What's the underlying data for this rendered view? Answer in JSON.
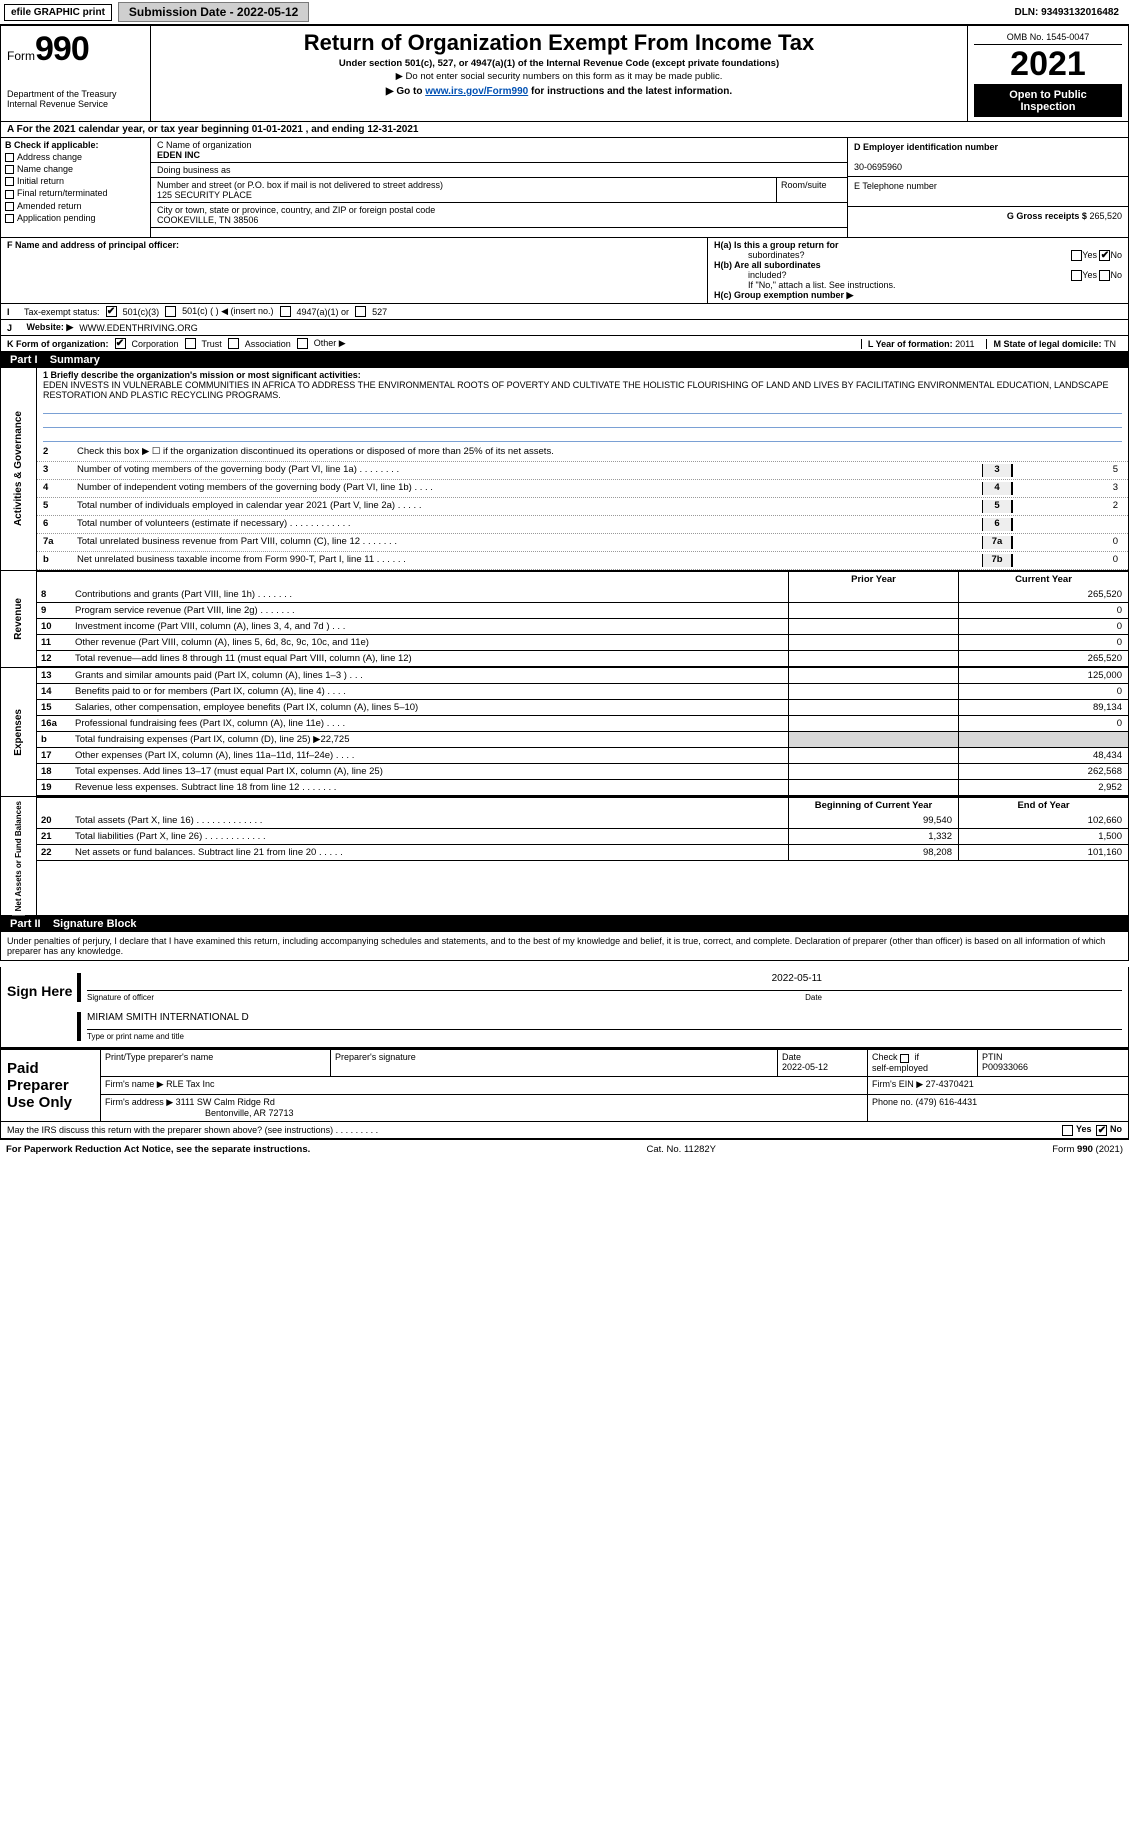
{
  "topbar": {
    "efile_label": "efile GRAPHIC print",
    "subdate_label": "Submission Date - 2022-05-12",
    "dln": "DLN: 93493132016482"
  },
  "header": {
    "form_word": "Form",
    "form_num": "990",
    "dept": "Department of the Treasury",
    "irs": "Internal Revenue Service",
    "title": "Return of Organization Exempt From Income Tax",
    "subtitle": "Under section 501(c), 527, or 4947(a)(1) of the Internal Revenue Code (except private foundations)",
    "ssn_note": "▶ Do not enter social security numbers on this form as it may be made public.",
    "goto_pre": "▶ Go to ",
    "goto_link": "www.irs.gov/Form990",
    "goto_post": " for instructions and the latest information.",
    "omb": "OMB No. 1545-0047",
    "year": "2021",
    "inspect1": "Open to Public",
    "inspect2": "Inspection"
  },
  "period": {
    "text": "A For the 2021 calendar year, or tax year beginning 01-01-2021    , and ending 12-31-2021"
  },
  "boxB": {
    "label": "B Check if applicable:",
    "items": [
      "Address change",
      "Name change",
      "Initial return",
      "Final return/terminated",
      "Amended return",
      "Application pending"
    ]
  },
  "boxC": {
    "label": "C Name of organization",
    "name": "EDEN INC",
    "dba_label": "Doing business as",
    "addr_label": "Number and street (or P.O. box if mail is not delivered to street address)",
    "room_label": "Room/suite",
    "addr": "125 SECURITY PLACE",
    "city_label": "City or town, state or province, country, and ZIP or foreign postal code",
    "city": "COOKEVILLE, TN  38506"
  },
  "boxD": {
    "label": "D Employer identification number",
    "value": "30-0695960"
  },
  "boxE": {
    "label": "E Telephone number"
  },
  "boxG": {
    "label": "G Gross receipts $",
    "value": "265,520"
  },
  "boxF": {
    "label": "F  Name and address of principal officer:"
  },
  "boxH": {
    "a": "H(a)  Is this a group return for",
    "a2": "subordinates?",
    "b": "H(b)  Are all subordinates",
    "b2": "included?",
    "note": "If \"No,\" attach a list. See instructions.",
    "c": "H(c)  Group exemption number ▶",
    "yes": "Yes",
    "no": "No"
  },
  "taxstatus": {
    "label": "Tax-exempt status:",
    "o1": "501(c)(3)",
    "o2": "501(c) (    ) ◀ (insert no.)",
    "o3": "4947(a)(1) or",
    "o4": "527"
  },
  "boxJ": {
    "label": "Website: ▶",
    "value": " WWW.EDENTHRIVING.ORG"
  },
  "boxK": {
    "label": "K Form of organization:",
    "opts": [
      "Corporation",
      "Trust",
      "Association",
      "Other ▶"
    ]
  },
  "boxL": {
    "label": "L Year of formation: ",
    "value": "2011"
  },
  "boxM": {
    "label": "M State of legal domicile: ",
    "value": "TN"
  },
  "part1": {
    "label": "Part I",
    "title": "Summary"
  },
  "mission": {
    "lead": "1   Briefly describe the organization's mission or most significant activities:",
    "text": "EDEN INVESTS IN VULNERABLE COMMUNITIES IN AFRICA TO ADDRESS THE ENVIRONMENTAL ROOTS OF POVERTY AND CULTIVATE THE HOLISTIC FLOURISHING OF LAND AND LIVES BY FACILITATING ENVIRONMENTAL EDUCATION, LANDSCAPE RESTORATION AND PLASTIC RECYCLING PROGRAMS."
  },
  "govlines": {
    "l2": "Check this box ▶  ☐  if the organization discontinued its operations or disposed of more than 25% of its net assets.",
    "rows": [
      {
        "n": "3",
        "t": "Number of voting members of the governing body (Part VI, line 1a)   .    .    .    .    .    .    .    .",
        "c": "3",
        "v": "5"
      },
      {
        "n": "4",
        "t": "Number of independent voting members of the governing body (Part VI, line 1b)   .    .    .    .",
        "c": "4",
        "v": "3"
      },
      {
        "n": "5",
        "t": "Total number of individuals employed in calendar year 2021 (Part V, line 2a)   .    .    .    .    .",
        "c": "5",
        "v": "2"
      },
      {
        "n": "6",
        "t": "Total number of volunteers (estimate if necessary)    .    .    .    .    .    .    .    .    .    .    .    .",
        "c": "6",
        "v": ""
      },
      {
        "n": "7a",
        "t": "Total unrelated business revenue from Part VIII, column (C), line 12   .    .    .    .    .    .    .",
        "c": "7a",
        "v": "0"
      },
      {
        "n": "b",
        "t": "Net unrelated business taxable income from Form 990-T, Part I, line 11    .    .    .    .    .    .",
        "c": "7b",
        "v": "0"
      }
    ]
  },
  "pycy": {
    "prior": "Prior Year",
    "current": "Current Year"
  },
  "revenue": {
    "side": "Revenue",
    "rows": [
      {
        "n": "8",
        "t": "Contributions and grants (Part VIII, line 1h)   .    .    .    .    .    .    .",
        "p": "",
        "c": "265,520"
      },
      {
        "n": "9",
        "t": "Program service revenue (Part VIII, line 2g)   .    .    .    .    .    .    .",
        "p": "",
        "c": "0"
      },
      {
        "n": "10",
        "t": "Investment income (Part VIII, column (A), lines 3, 4, and 7d )   .    .    .",
        "p": "",
        "c": "0"
      },
      {
        "n": "11",
        "t": "Other revenue (Part VIII, column (A), lines 5, 6d, 8c, 9c, 10c, and 11e)",
        "p": "",
        "c": "0"
      },
      {
        "n": "12",
        "t": "Total revenue—add lines 8 through 11 (must equal Part VIII, column (A), line 12)",
        "p": "",
        "c": "265,520"
      }
    ]
  },
  "expenses": {
    "side": "Expenses",
    "rows": [
      {
        "n": "13",
        "t": "Grants and similar amounts paid (Part IX, column (A), lines 1–3 )   .    .    .",
        "p": "",
        "c": "125,000"
      },
      {
        "n": "14",
        "t": "Benefits paid to or for members (Part IX, column (A), line 4)   .    .    .    .",
        "p": "",
        "c": "0"
      },
      {
        "n": "15",
        "t": "Salaries, other compensation, employee benefits (Part IX, column (A), lines 5–10)",
        "p": "",
        "c": "89,134"
      },
      {
        "n": "16a",
        "t": "Professional fundraising fees (Part IX, column (A), line 11e)   .    .    .    .",
        "p": "",
        "c": "0"
      },
      {
        "n": "b",
        "t": "Total fundraising expenses (Part IX, column (D), line 25) ▶22,725",
        "p": "shade",
        "c": "shade"
      },
      {
        "n": "17",
        "t": "Other expenses (Part IX, column (A), lines 11a–11d, 11f–24e)   .    .    .    .",
        "p": "",
        "c": "48,434"
      },
      {
        "n": "18",
        "t": "Total expenses. Add lines 13–17 (must equal Part IX, column (A), line 25)",
        "p": "",
        "c": "262,568"
      },
      {
        "n": "19",
        "t": "Revenue less expenses. Subtract line 18 from line 12   .    .    .    .    .    .    .",
        "p": "",
        "c": "2,952"
      }
    ]
  },
  "netassets": {
    "side": "Net Assets or Fund Balances",
    "hdr_b": "Beginning of Current Year",
    "hdr_e": "End of Year",
    "rows": [
      {
        "n": "20",
        "t": "Total assets (Part X, line 16)   .    .    .    .    .    .    .    .    .    .    .    .    .",
        "b": "99,540",
        "e": "102,660"
      },
      {
        "n": "21",
        "t": "Total liabilities (Part X, line 26)   .    .    .    .    .    .    .    .    .    .    .    .",
        "b": "1,332",
        "e": "1,500"
      },
      {
        "n": "22",
        "t": "Net assets or fund balances. Subtract line 21 from line 20   .    .    .    .    .",
        "b": "98,208",
        "e": "101,160"
      }
    ]
  },
  "part2": {
    "label": "Part II",
    "title": "Signature Block"
  },
  "perjury": "Under penalties of perjury, I declare that I have examined this return, including accompanying schedules and statements, and to the best of my knowledge and belief, it is true, correct, and complete. Declaration of preparer (other than officer) is based on all information of which preparer has any knowledge.",
  "sign": {
    "label": "Sign Here",
    "sig_of": "Signature of officer",
    "date": "Date",
    "date_v": "2022-05-11",
    "name": "MIRIAM SMITH  INTERNATIONAL D",
    "name_lab": "Type or print name and title"
  },
  "paid": {
    "label": "Paid Preparer Use Only",
    "h1": "Print/Type preparer's name",
    "h2": "Preparer's signature",
    "h3": "Date",
    "h3v": "2022-05-12",
    "h4a": "Check",
    "h4b": "if",
    "h4c": "self-employed",
    "h5": "PTIN",
    "h5v": "P00933066",
    "firm_l": "Firm's name    ▶",
    "firm": "RLE Tax Inc",
    "ein_l": "Firm's EIN ▶",
    "ein": "27-4370421",
    "addr_l": "Firm's address ▶",
    "addr": "3111 SW Calm Ridge Rd",
    "addr2": "Bentonville, AR  72713",
    "phone_l": "Phone no.",
    "phone": "(479) 616-4431"
  },
  "discuss": {
    "q": "May the IRS discuss this return with the preparer shown above? (see instructions)   .    .    .    .    .    .    .    .    .",
    "yes": "Yes",
    "no": "No"
  },
  "footer": {
    "pra": "For Paperwork Reduction Act Notice, see the separate instructions.",
    "cat": "Cat. No. 11282Y",
    "form": "Form 990 (2021)"
  },
  "sides": {
    "gov": "Activities & Governance"
  }
}
